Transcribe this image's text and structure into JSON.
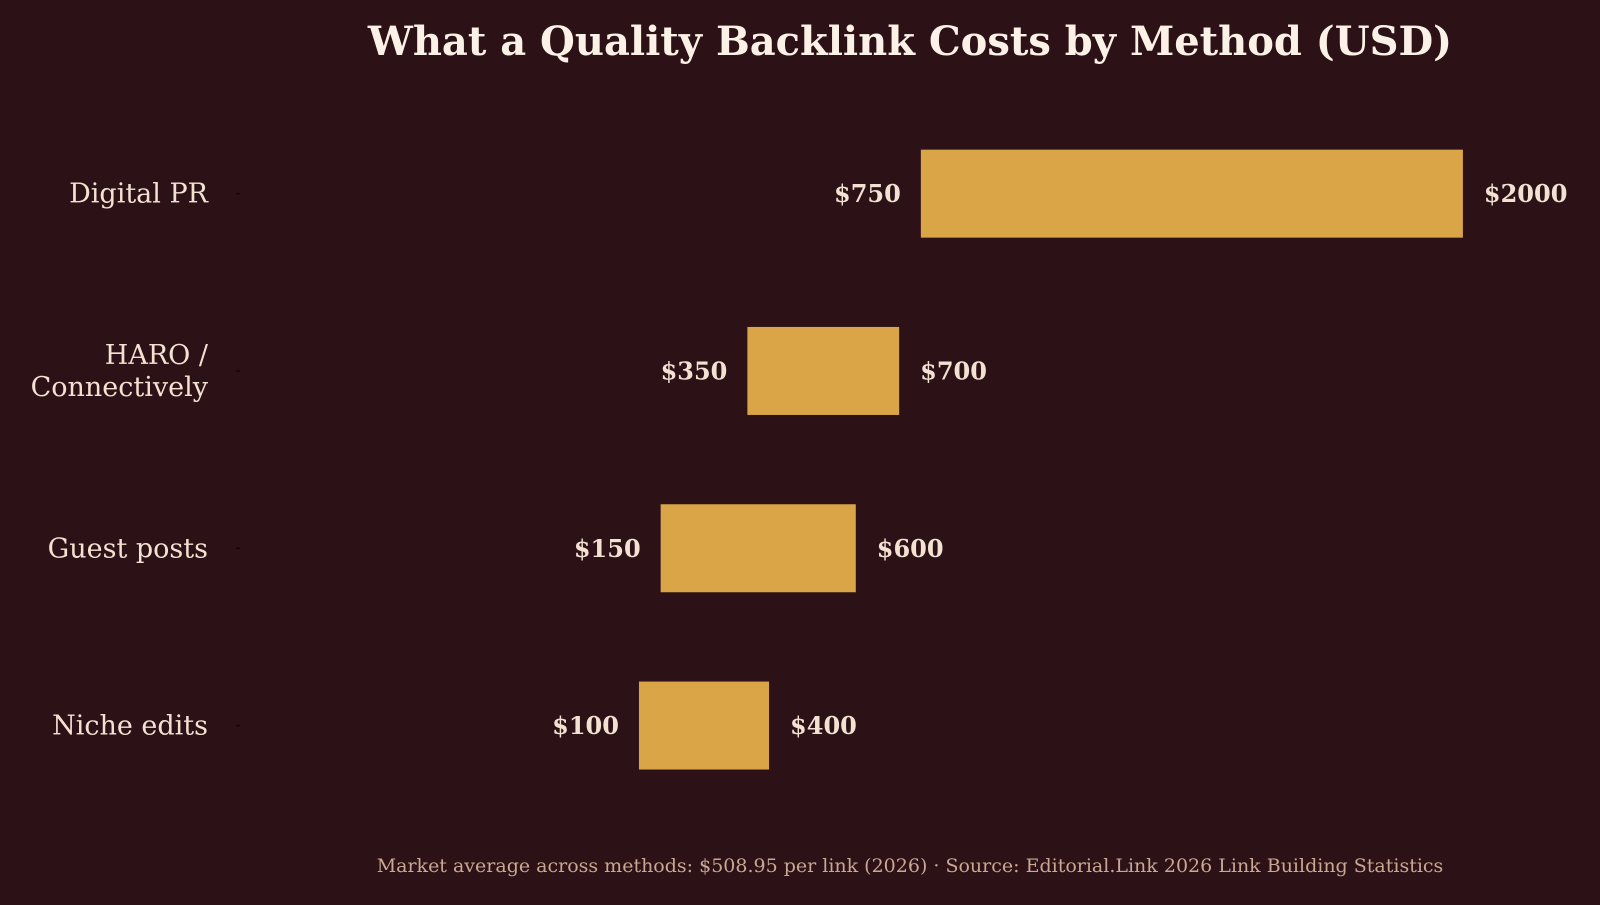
{
  "chart_data": {
    "type": "bar",
    "subtype": "floating-range",
    "orientation": "horizontal",
    "title": "What a Quality Backlink Costs by Method (USD)",
    "xlabel": "",
    "ylabel": "",
    "grid": false,
    "legend": "none",
    "categories": [
      "Digital PR",
      "HARO / Connectively",
      "Guest posts",
      "Niche edits"
    ],
    "category_lines": [
      [
        "Digital PR"
      ],
      [
        "HARO /",
        "Connectively"
      ],
      [
        "Guest posts"
      ],
      [
        "Niche edits"
      ]
    ],
    "ranges": [
      {
        "low": 750,
        "high": 2000
      },
      {
        "low": 350,
        "high": 700
      },
      {
        "low": 150,
        "high": 600
      },
      {
        "low": 100,
        "high": 400
      }
    ],
    "low_labels": [
      "$750",
      "$350",
      "$150",
      "$100"
    ],
    "high_labels": [
      "$2000",
      "$700",
      "$600",
      "$400"
    ],
    "xlim": [
      -820,
      2270
    ],
    "footer": "Market average across methods: $508.95 per link (2026)  ·  Source: Editorial.Link 2026 Link Building Statistics",
    "colors": {
      "background": "#2c1116",
      "bar": "#d9a547",
      "text": "#f3e2d2",
      "title": "#fbf1e6",
      "footer": "#c9a992",
      "tick": "#130608"
    }
  }
}
